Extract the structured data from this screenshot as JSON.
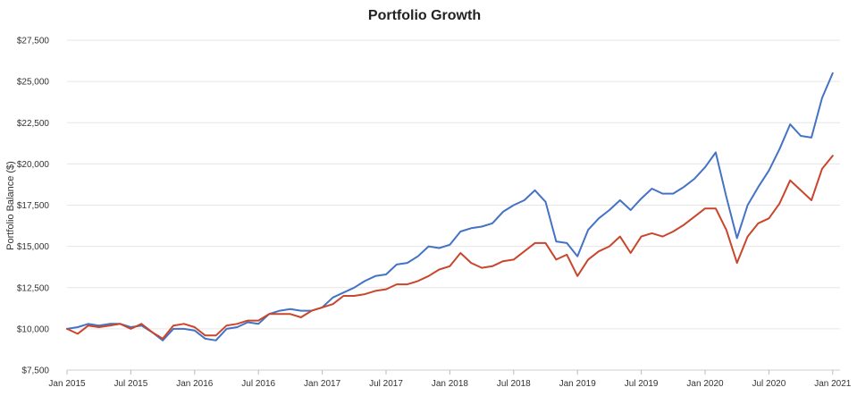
{
  "chart_data": {
    "type": "line",
    "title": "Portfolio Growth",
    "xlabel": "",
    "ylabel": "Portfolio Balance ($)",
    "ylim": [
      7500,
      27500
    ],
    "yticks": [
      7500,
      10000,
      12500,
      15000,
      17500,
      20000,
      22500,
      25000,
      27500
    ],
    "ytick_labels": [
      "$7,500",
      "$10,000",
      "$12,500",
      "$15,000",
      "$17,500",
      "$20,000",
      "$22,500",
      "$25,000",
      "$27,500"
    ],
    "x_start": "2015-01",
    "xticks": [
      "2015-01",
      "2015-07",
      "2016-01",
      "2016-07",
      "2017-01",
      "2017-07",
      "2018-01",
      "2018-07",
      "2019-01",
      "2019-07",
      "2020-01",
      "2020-07",
      "2021-01"
    ],
    "xtick_labels": [
      "Jan 2015",
      "Jul 2015",
      "Jan 2016",
      "Jul 2016",
      "Jan 2017",
      "Jul 2017",
      "Jan 2018",
      "Jul 2018",
      "Jan 2019",
      "Jul 2019",
      "Jan 2020",
      "Jul 2020",
      "Jan 2021"
    ],
    "grid": true,
    "legend": "none",
    "series": [
      {
        "color": "#4472c4",
        "values": [
          10000,
          10100,
          10300,
          10200,
          10300,
          10300,
          10100,
          10200,
          9800,
          9300,
          10000,
          10000,
          9900,
          9400,
          9300,
          10000,
          10100,
          10400,
          10300,
          10900,
          11100,
          11200,
          11100,
          11100,
          11300,
          11900,
          12200,
          12500,
          12900,
          13200,
          13300,
          13900,
          14000,
          14400,
          15000,
          14900,
          15100,
          15900,
          16100,
          16200,
          16400,
          17100,
          17500,
          17800,
          18400,
          17700,
          15300,
          15200,
          14400,
          16000,
          16700,
          17200,
          17800,
          17200,
          17900,
          18500,
          18200,
          18200,
          18600,
          19100,
          19800,
          20700,
          18000,
          15500,
          17500,
          18600,
          19600,
          20900,
          22400,
          21700,
          21600,
          24000,
          25500
        ]
      },
      {
        "color": "#c9462c",
        "values": [
          10000,
          9700,
          10200,
          10100,
          10200,
          10300,
          10000,
          10300,
          9800,
          9400,
          10200,
          10300,
          10100,
          9600,
          9600,
          10200,
          10300,
          10500,
          10500,
          10900,
          10900,
          10900,
          10700,
          11100,
          11300,
          11500,
          12000,
          12000,
          12100,
          12300,
          12400,
          12700,
          12700,
          12900,
          13200,
          13600,
          13800,
          14600,
          14000,
          13700,
          13800,
          14100,
          14200,
          14700,
          15200,
          15200,
          14200,
          14500,
          13200,
          14200,
          14700,
          15000,
          15600,
          14600,
          15600,
          15800,
          15600,
          15900,
          16300,
          16800,
          17300,
          17300,
          16000,
          14000,
          15600,
          16400,
          16700,
          17600,
          19000,
          18400,
          17800,
          19700,
          20500
        ]
      }
    ]
  }
}
